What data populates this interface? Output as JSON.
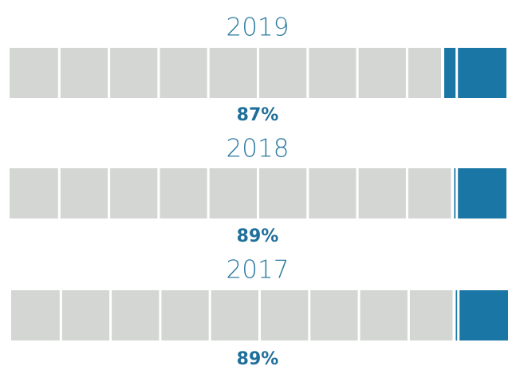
{
  "chart_data": {
    "type": "segmented-bar",
    "categories": [
      "2019",
      "2018",
      "2017"
    ],
    "values": [
      87,
      89,
      89
    ],
    "value_labels": [
      "87%",
      "89%",
      "89%"
    ],
    "xlim": [
      0,
      100
    ],
    "segments": 10,
    "color": "#1a76a4",
    "track_color": "#d4d6d4"
  }
}
